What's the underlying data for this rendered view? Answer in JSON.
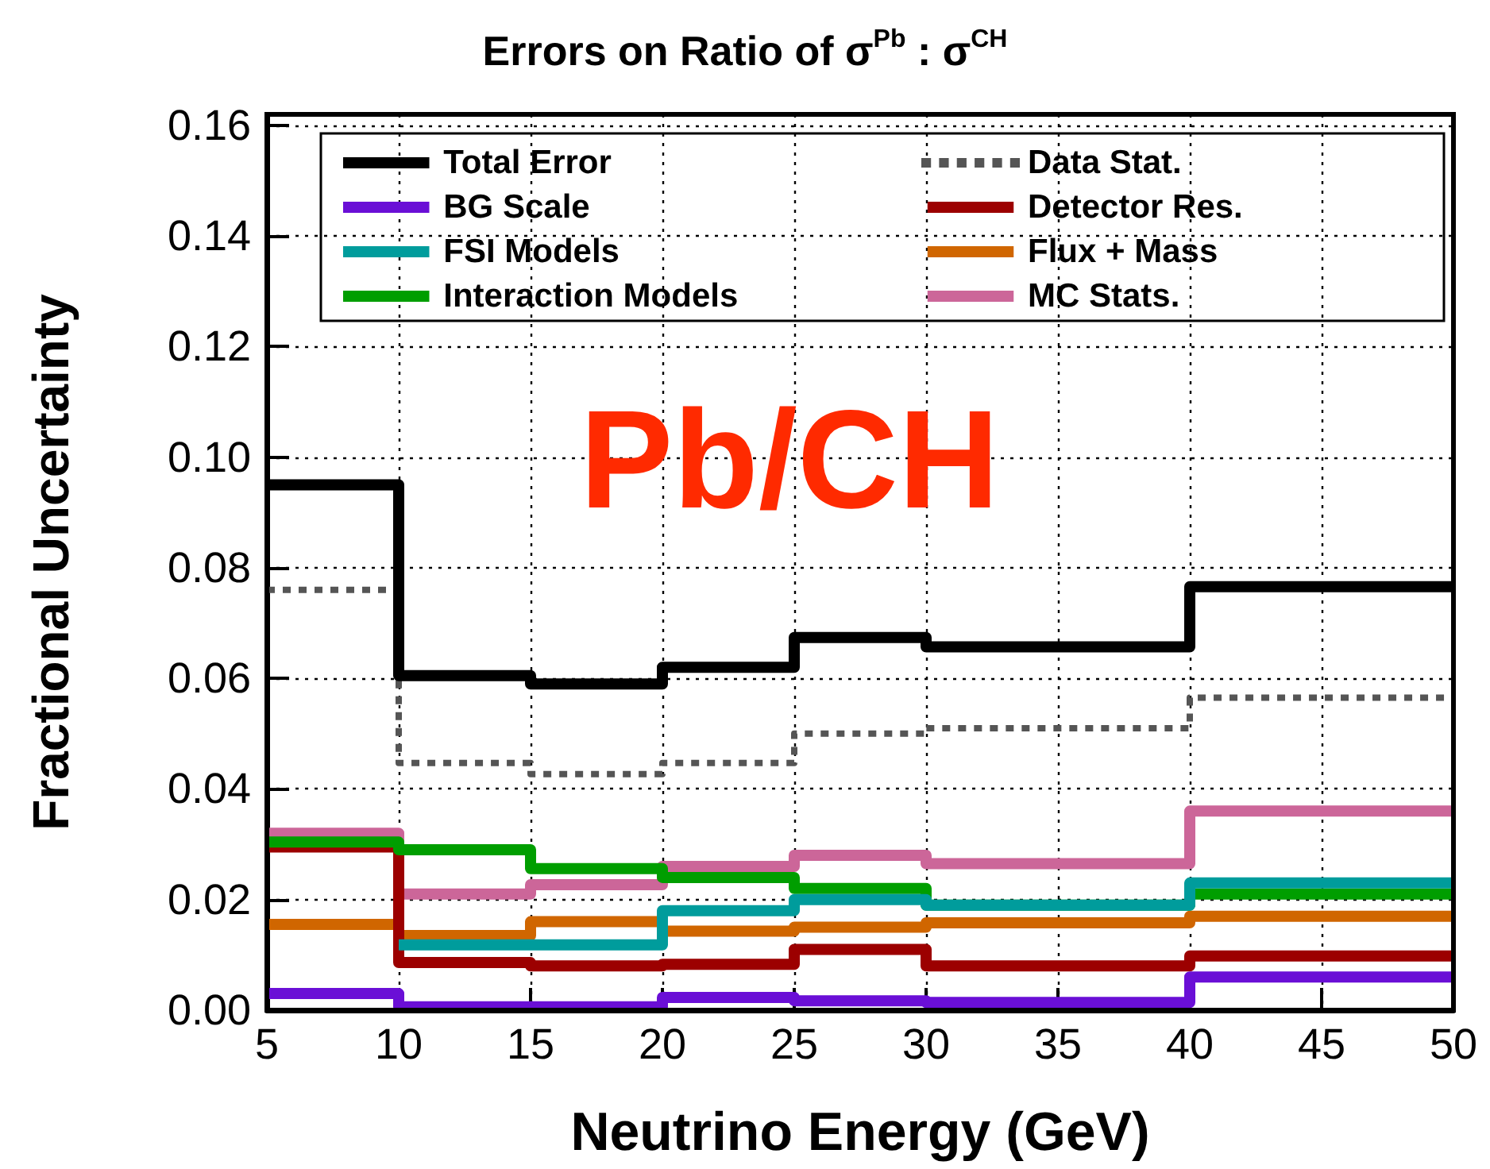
{
  "chart_data": {
    "type": "step",
    "title": "Errors on Ratio of σ$^{Pb}$ : σ$^{CH}$",
    "xlabel": "Neutrino Energy (GeV)",
    "ylabel": "Fractional Uncertainty",
    "annotations": [
      "Pb/CH"
    ],
    "x": [
      5,
      10,
      15,
      20,
      25,
      30,
      40,
      50
    ],
    "xlim": [
      5,
      50
    ],
    "xticks": [
      5,
      10,
      15,
      20,
      25,
      30,
      35,
      40,
      45,
      50
    ],
    "ylim": [
      0,
      0.162
    ],
    "yticks": [
      {
        "value": 0,
        "label": "0.00"
      },
      {
        "value": 0.02,
        "label": "0.02"
      },
      {
        "value": 0.04,
        "label": "0.04"
      },
      {
        "value": 0.06,
        "label": "0.06"
      },
      {
        "value": 0.08,
        "label": "0.08"
      },
      {
        "value": 0.1,
        "label": "0.10"
      },
      {
        "value": 0.12,
        "label": "0.12"
      },
      {
        "value": 0.14,
        "label": "0.14"
      },
      {
        "value": 0.16,
        "label": "0.16"
      }
    ],
    "grid": true,
    "legend": "top",
    "marker": "none",
    "series": [
      {
        "name": "Total Error",
        "color": "#000000",
        "values": [
          0.095,
          0.0605,
          0.059,
          0.062,
          0.0674,
          0.0657,
          0.0766,
          0.0766
        ]
      },
      {
        "name": "BG Scale",
        "color": "#6a0fd6",
        "values": [
          0.003,
          0.0006,
          0.0006,
          0.0023,
          0.0017,
          0.0014,
          0.006,
          0.006
        ]
      },
      {
        "name": "FSI Models",
        "color": "#009c9c",
        "values": [
          null,
          0.0118,
          0.0118,
          0.018,
          0.02,
          0.019,
          0.023,
          0.023
        ]
      },
      {
        "name": "Interaction Models",
        "color": "#009e00",
        "values": [
          0.0304,
          0.029,
          0.0256,
          0.024,
          0.022,
          0.019,
          0.021,
          0.021
        ]
      },
      {
        "name": "Data Stat.",
        "color": "#555555",
        "line_style": "dotted",
        "values": [
          0.076,
          0.0447,
          0.0427,
          0.0447,
          0.05,
          0.051,
          0.0565,
          0.0565
        ]
      },
      {
        "name": "Detector Res.",
        "color": "#9c0000",
        "values": [
          0.0295,
          0.0086,
          0.008,
          0.0083,
          0.011,
          0.008,
          0.0098,
          0.0098
        ]
      },
      {
        "name": "Flux + Mass",
        "color": "#d06600",
        "values": [
          0.0155,
          0.0135,
          0.016,
          0.0143,
          0.015,
          0.0158,
          0.017,
          0.017
        ]
      },
      {
        "name": "MC Stats.",
        "color": "#cc6699",
        "values": [
          0.032,
          0.021,
          0.0227,
          0.026,
          0.028,
          0.0265,
          0.036,
          0.036
        ]
      }
    ]
  }
}
